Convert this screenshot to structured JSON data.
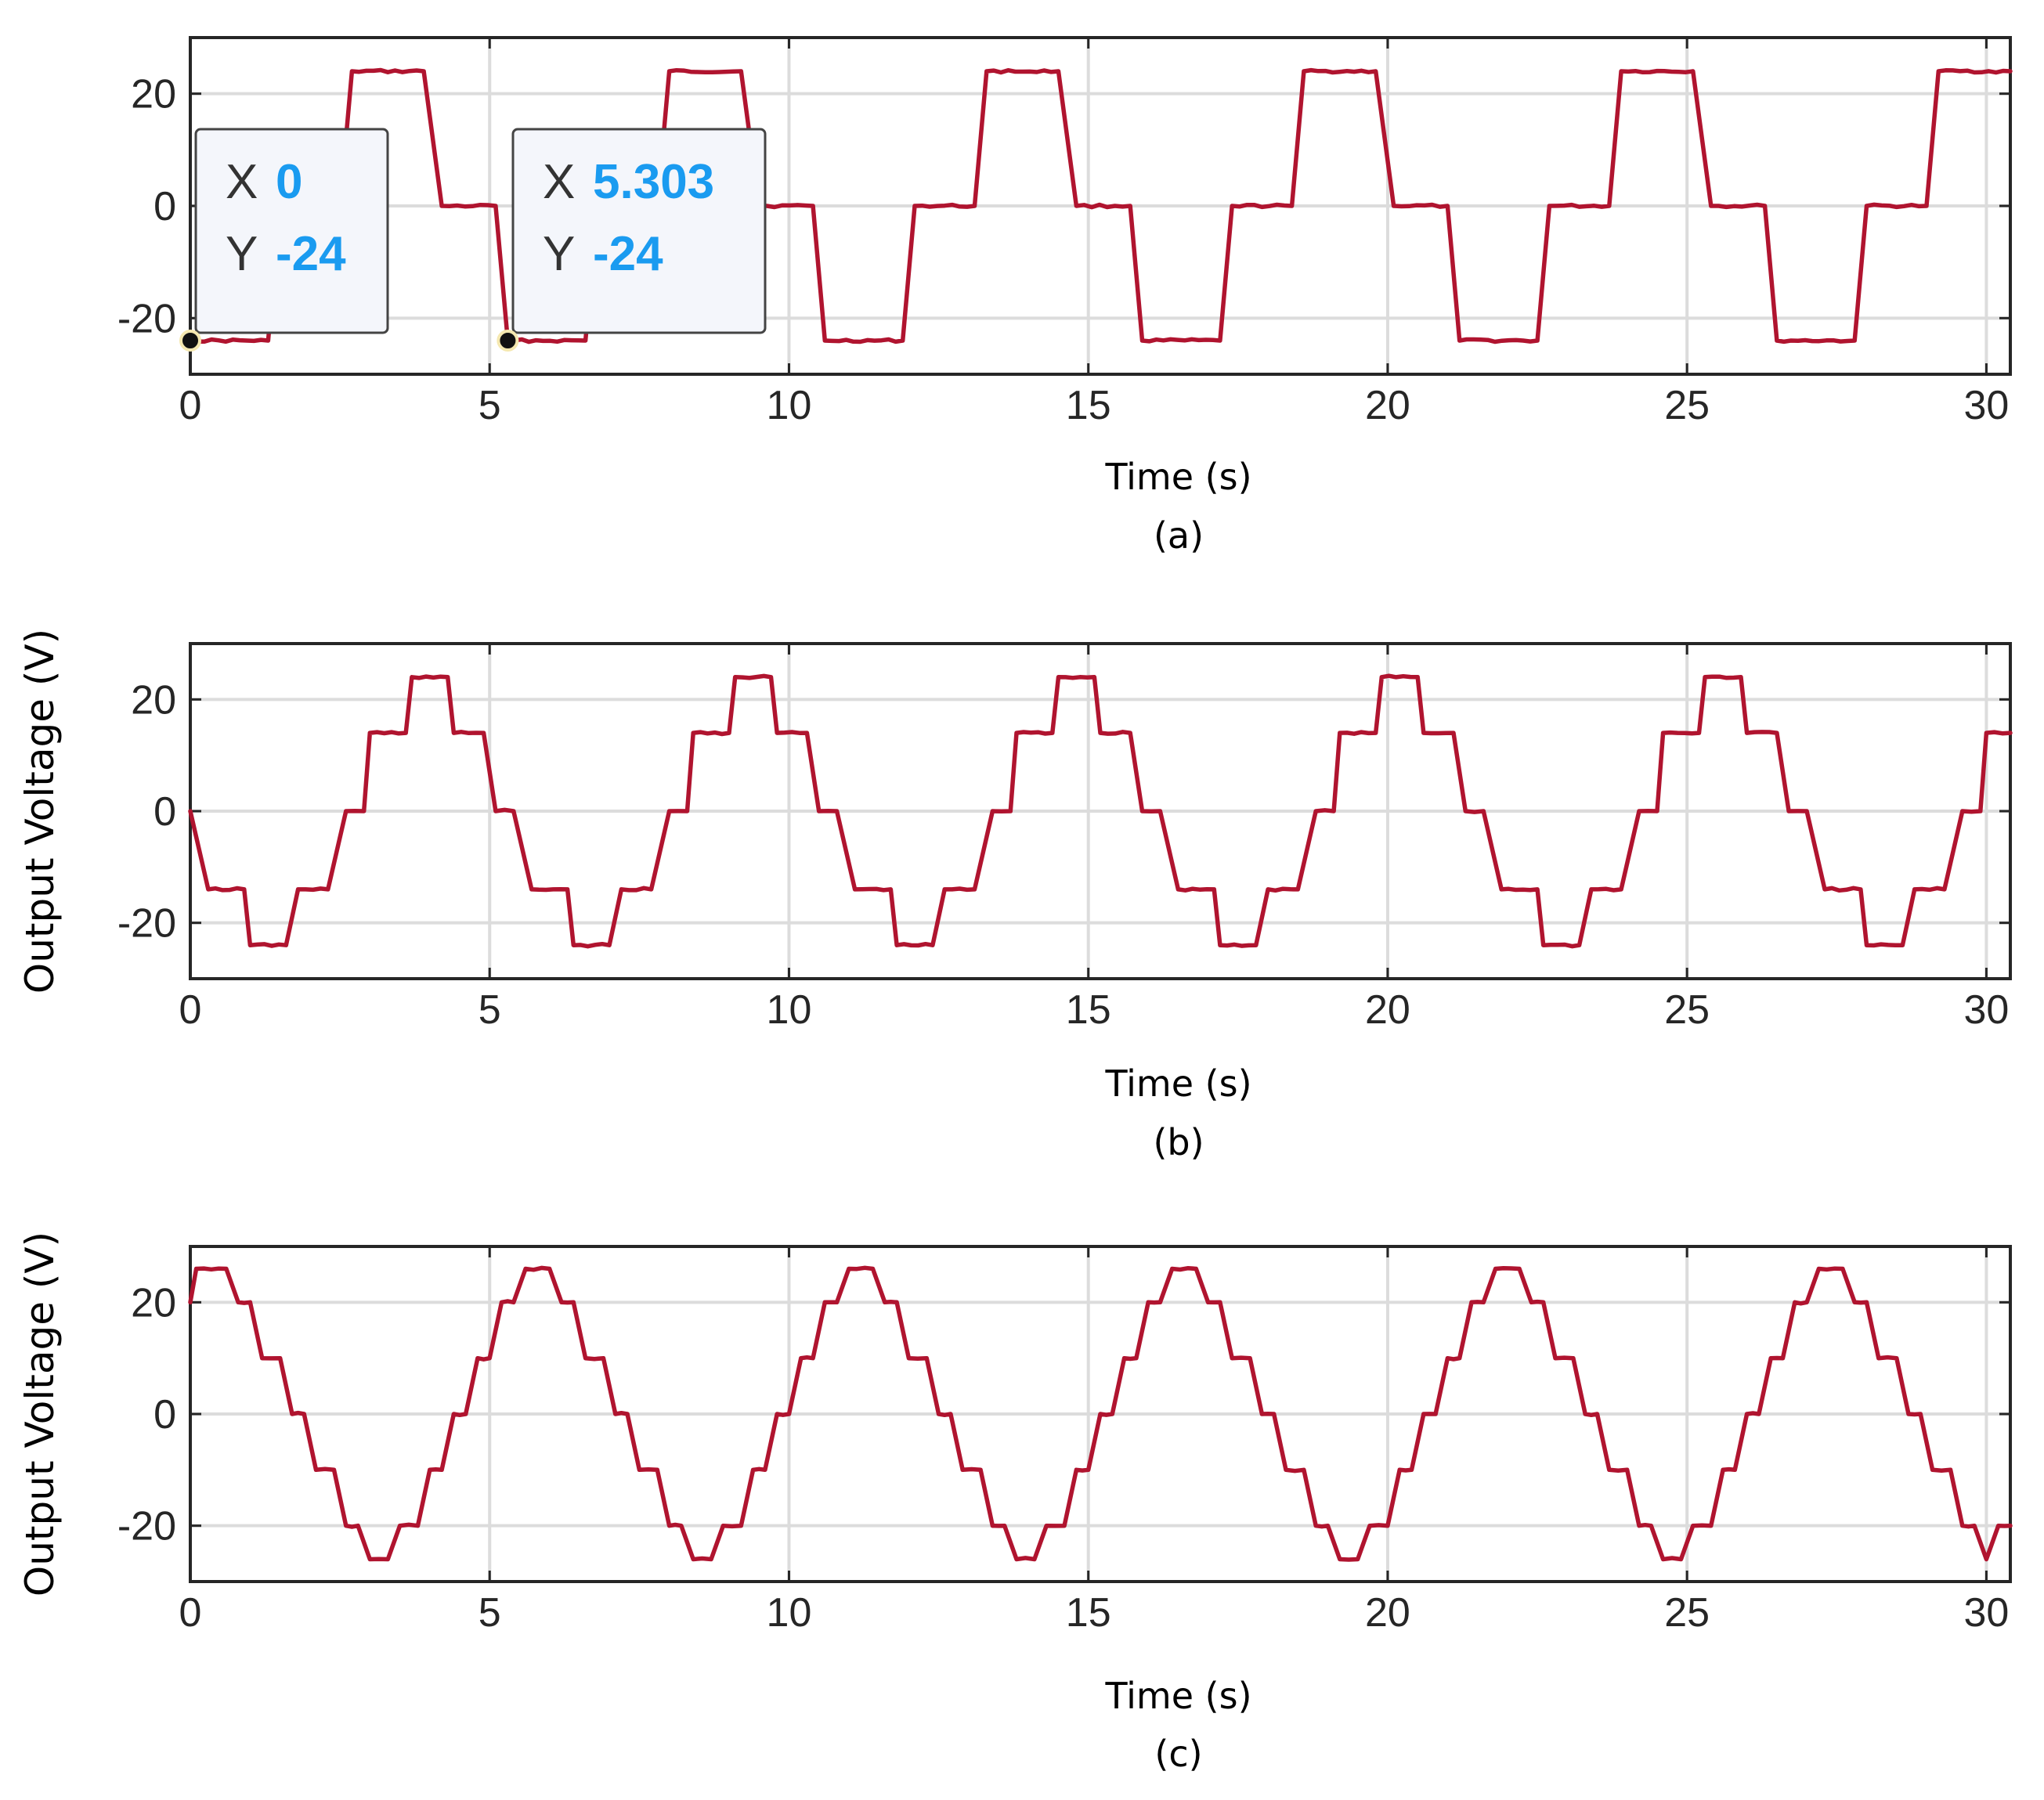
{
  "colors": {
    "trace": "#b0142f",
    "datatip_value": "#1a9bf0"
  },
  "chart_data": [
    {
      "type": "line",
      "xlabel": "Time (s)",
      "ylabel": "",
      "caption": "(a)",
      "xlim": [
        0,
        30.4
      ],
      "ylim": [
        -30,
        30
      ],
      "xticks": [
        "0",
        "5",
        "10",
        "15",
        "20",
        "25",
        "30"
      ],
      "yticks": [
        "20",
        "0",
        "-20"
      ],
      "grid": true,
      "waveform": {
        "shape": "three-level stepped",
        "levels": [
          -24,
          0,
          24
        ],
        "period": 5.303,
        "start": -24,
        "samples": [
          [
            0,
            -24
          ],
          [
            1.3,
            -24
          ],
          [
            1.5,
            0
          ],
          [
            2.5,
            0
          ],
          [
            2.7,
            24
          ],
          [
            3.9,
            24
          ],
          [
            4.2,
            0
          ],
          [
            5.1,
            0
          ],
          [
            5.303,
            -24
          ],
          [
            6.6,
            -24
          ],
          [
            6.8,
            0
          ],
          [
            7.8,
            0
          ],
          [
            8.0,
            24
          ],
          [
            9.2,
            24
          ],
          [
            9.5,
            0
          ],
          [
            10.4,
            0
          ],
          [
            10.6,
            -24
          ],
          [
            11.9,
            -24
          ],
          [
            12.1,
            0
          ],
          [
            13.1,
            0
          ],
          [
            13.3,
            24
          ],
          [
            14.5,
            24
          ],
          [
            14.8,
            0
          ],
          [
            15.7,
            0
          ],
          [
            15.9,
            -24
          ],
          [
            17.2,
            -24
          ],
          [
            17.4,
            0
          ],
          [
            18.4,
            0
          ],
          [
            18.6,
            24
          ],
          [
            19.8,
            24
          ],
          [
            20.1,
            0
          ],
          [
            21.0,
            0
          ],
          [
            21.2,
            -24
          ],
          [
            22.5,
            -24
          ],
          [
            22.7,
            0
          ],
          [
            23.7,
            0
          ],
          [
            23.9,
            24
          ],
          [
            25.1,
            24
          ],
          [
            25.4,
            0
          ],
          [
            26.3,
            0
          ],
          [
            26.5,
            -24
          ],
          [
            27.8,
            -24
          ],
          [
            28.0,
            0
          ],
          [
            29.0,
            0
          ],
          [
            29.2,
            24
          ],
          [
            30.4,
            24
          ]
        ]
      },
      "datatips": [
        {
          "x_label": "X",
          "x_value": "0",
          "y_label": "Y",
          "y_value": "-24",
          "x": 0,
          "y": -24
        },
        {
          "x_label": "X",
          "x_value": "5.303",
          "y_label": "Y",
          "y_value": "-24",
          "x": 5.303,
          "y": -24
        }
      ]
    },
    {
      "type": "line",
      "xlabel": "Time (s)",
      "ylabel": "Output Voltage (V)",
      "caption": "(b)",
      "xlim": [
        0,
        30.4
      ],
      "ylim": [
        -30,
        30
      ],
      "xticks": [
        "0",
        "5",
        "10",
        "15",
        "20",
        "25",
        "30"
      ],
      "yticks": [
        "20",
        "0",
        "-20"
      ],
      "grid": true,
      "waveform": {
        "shape": "five-level stepped",
        "levels": [
          -24,
          -14,
          0,
          14,
          24
        ],
        "period": 5.4,
        "start": 0,
        "samples": [
          [
            0,
            0
          ],
          [
            0.3,
            -14
          ],
          [
            0.9,
            -14
          ],
          [
            1.0,
            -24
          ],
          [
            1.6,
            -24
          ],
          [
            1.8,
            -14
          ],
          [
            2.3,
            -14
          ],
          [
            2.6,
            0
          ],
          [
            2.9,
            0
          ],
          [
            3.0,
            14
          ],
          [
            3.6,
            14
          ],
          [
            3.7,
            24
          ],
          [
            4.3,
            24
          ],
          [
            4.4,
            14
          ],
          [
            4.9,
            14
          ],
          [
            5.1,
            0
          ],
          [
            5.4,
            0
          ],
          [
            5.7,
            -14
          ],
          [
            6.3,
            -14
          ],
          [
            6.4,
            -24
          ],
          [
            7.0,
            -24
          ],
          [
            7.2,
            -14
          ],
          [
            7.7,
            -14
          ],
          [
            8.0,
            0
          ],
          [
            8.3,
            0
          ],
          [
            8.4,
            14
          ],
          [
            9.0,
            14
          ],
          [
            9.1,
            24
          ],
          [
            9.7,
            24
          ],
          [
            9.8,
            14
          ],
          [
            10.3,
            14
          ],
          [
            10.5,
            0
          ],
          [
            10.8,
            0
          ],
          [
            11.1,
            -14
          ],
          [
            11.7,
            -14
          ],
          [
            11.8,
            -24
          ],
          [
            12.4,
            -24
          ],
          [
            12.6,
            -14
          ],
          [
            13.1,
            -14
          ],
          [
            13.4,
            0
          ],
          [
            13.7,
            0
          ],
          [
            13.8,
            14
          ],
          [
            14.4,
            14
          ],
          [
            14.5,
            24
          ],
          [
            15.1,
            24
          ],
          [
            15.2,
            14
          ],
          [
            15.7,
            14
          ],
          [
            15.9,
            0
          ],
          [
            16.2,
            0
          ],
          [
            16.5,
            -14
          ],
          [
            17.1,
            -14
          ],
          [
            17.2,
            -24
          ],
          [
            17.8,
            -24
          ],
          [
            18.0,
            -14
          ],
          [
            18.5,
            -14
          ],
          [
            18.8,
            0
          ],
          [
            19.1,
            0
          ],
          [
            19.2,
            14
          ],
          [
            19.8,
            14
          ],
          [
            19.9,
            24
          ],
          [
            20.5,
            24
          ],
          [
            20.6,
            14
          ],
          [
            21.1,
            14
          ],
          [
            21.3,
            0
          ],
          [
            21.6,
            0
          ],
          [
            21.9,
            -14
          ],
          [
            22.5,
            -14
          ],
          [
            22.6,
            -24
          ],
          [
            23.2,
            -24
          ],
          [
            23.4,
            -14
          ],
          [
            23.9,
            -14
          ],
          [
            24.2,
            0
          ],
          [
            24.5,
            0
          ],
          [
            24.6,
            14
          ],
          [
            25.2,
            14
          ],
          [
            25.3,
            24
          ],
          [
            25.9,
            24
          ],
          [
            26.0,
            14
          ],
          [
            26.5,
            14
          ],
          [
            26.7,
            0
          ],
          [
            27.0,
            0
          ],
          [
            27.3,
            -14
          ],
          [
            27.9,
            -14
          ],
          [
            28.0,
            -24
          ],
          [
            28.6,
            -24
          ],
          [
            28.8,
            -14
          ],
          [
            29.3,
            -14
          ],
          [
            29.6,
            0
          ],
          [
            29.9,
            0
          ],
          [
            30.0,
            14
          ],
          [
            30.4,
            14
          ]
        ]
      }
    },
    {
      "type": "line",
      "xlabel": "Time (s)",
      "ylabel": "Output Voltage (V)",
      "caption": "(c)",
      "xlim": [
        0,
        30.4
      ],
      "ylim": [
        -30,
        30
      ],
      "xticks": [
        "0",
        "5",
        "10",
        "15",
        "20",
        "25",
        "30"
      ],
      "yticks": [
        "20",
        "0",
        "-20"
      ],
      "grid": true,
      "waveform": {
        "shape": "multilevel stepped",
        "levels": [
          -26,
          -20,
          -10,
          0,
          10,
          20,
          26
        ],
        "period": 5.4,
        "start": 20,
        "samples": [
          [
            0,
            20
          ],
          [
            0.1,
            26
          ],
          [
            0.6,
            26
          ],
          [
            0.8,
            20
          ],
          [
            1.0,
            20
          ],
          [
            1.2,
            10
          ],
          [
            1.5,
            10
          ],
          [
            1.7,
            0
          ],
          [
            1.9,
            0
          ],
          [
            2.1,
            -10
          ],
          [
            2.4,
            -10
          ],
          [
            2.6,
            -20
          ],
          [
            2.8,
            -20
          ],
          [
            3.0,
            -26
          ],
          [
            3.3,
            -26
          ],
          [
            3.5,
            -20
          ],
          [
            3.8,
            -20
          ],
          [
            4.0,
            -10
          ],
          [
            4.2,
            -10
          ],
          [
            4.4,
            0
          ],
          [
            4.6,
            0
          ],
          [
            4.8,
            10
          ],
          [
            5.0,
            10
          ],
          [
            5.2,
            20
          ],
          [
            5.4,
            20
          ],
          [
            5.6,
            26
          ],
          [
            6.0,
            26
          ],
          [
            6.2,
            20
          ],
          [
            6.4,
            20
          ],
          [
            6.6,
            10
          ],
          [
            6.9,
            10
          ],
          [
            7.1,
            0
          ],
          [
            7.3,
            0
          ],
          [
            7.5,
            -10
          ],
          [
            7.8,
            -10
          ],
          [
            8.0,
            -20
          ],
          [
            8.2,
            -20
          ],
          [
            8.4,
            -26
          ],
          [
            8.7,
            -26
          ],
          [
            8.9,
            -20
          ],
          [
            9.2,
            -20
          ],
          [
            9.4,
            -10
          ],
          [
            9.6,
            -10
          ],
          [
            9.8,
            0
          ],
          [
            10.0,
            0
          ],
          [
            10.2,
            10
          ],
          [
            10.4,
            10
          ],
          [
            10.6,
            20
          ],
          [
            10.8,
            20
          ],
          [
            11.0,
            26
          ],
          [
            11.4,
            26
          ],
          [
            11.6,
            20
          ],
          [
            11.8,
            20
          ],
          [
            12.0,
            10
          ],
          [
            12.3,
            10
          ],
          [
            12.5,
            0
          ],
          [
            12.7,
            0
          ],
          [
            12.9,
            -10
          ],
          [
            13.2,
            -10
          ],
          [
            13.4,
            -20
          ],
          [
            13.6,
            -20
          ],
          [
            13.8,
            -26
          ],
          [
            14.1,
            -26
          ],
          [
            14.3,
            -20
          ],
          [
            14.6,
            -20
          ],
          [
            14.8,
            -10
          ],
          [
            15.0,
            -10
          ],
          [
            15.2,
            0
          ],
          [
            15.4,
            0
          ],
          [
            15.6,
            10
          ],
          [
            15.8,
            10
          ],
          [
            16.0,
            20
          ],
          [
            16.2,
            20
          ],
          [
            16.4,
            26
          ],
          [
            16.8,
            26
          ],
          [
            17.0,
            20
          ],
          [
            17.2,
            20
          ],
          [
            17.4,
            10
          ],
          [
            17.7,
            10
          ],
          [
            17.9,
            0
          ],
          [
            18.1,
            0
          ],
          [
            18.3,
            -10
          ],
          [
            18.6,
            -10
          ],
          [
            18.8,
            -20
          ],
          [
            19.0,
            -20
          ],
          [
            19.2,
            -26
          ],
          [
            19.5,
            -26
          ],
          [
            19.7,
            -20
          ],
          [
            20.0,
            -20
          ],
          [
            20.2,
            -10
          ],
          [
            20.4,
            -10
          ],
          [
            20.6,
            0
          ],
          [
            20.8,
            0
          ],
          [
            21.0,
            10
          ],
          [
            21.2,
            10
          ],
          [
            21.4,
            20
          ],
          [
            21.6,
            20
          ],
          [
            21.8,
            26
          ],
          [
            22.2,
            26
          ],
          [
            22.4,
            20
          ],
          [
            22.6,
            20
          ],
          [
            22.8,
            10
          ],
          [
            23.1,
            10
          ],
          [
            23.3,
            0
          ],
          [
            23.5,
            0
          ],
          [
            23.7,
            -10
          ],
          [
            24.0,
            -10
          ],
          [
            24.2,
            -20
          ],
          [
            24.4,
            -20
          ],
          [
            24.6,
            -26
          ],
          [
            24.9,
            -26
          ],
          [
            25.1,
            -20
          ],
          [
            25.4,
            -20
          ],
          [
            25.6,
            -10
          ],
          [
            25.8,
            -10
          ],
          [
            26.0,
            0
          ],
          [
            26.2,
            0
          ],
          [
            26.4,
            10
          ],
          [
            26.6,
            10
          ],
          [
            26.8,
            20
          ],
          [
            27.0,
            20
          ],
          [
            27.2,
            26
          ],
          [
            27.6,
            26
          ],
          [
            27.8,
            20
          ],
          [
            28.0,
            20
          ],
          [
            28.2,
            10
          ],
          [
            28.5,
            10
          ],
          [
            28.7,
            0
          ],
          [
            28.9,
            0
          ],
          [
            29.1,
            -10
          ],
          [
            29.4,
            -10
          ],
          [
            29.6,
            -20
          ],
          [
            29.8,
            -20
          ],
          [
            30.0,
            -26
          ],
          [
            30.2,
            -20
          ],
          [
            30.4,
            -20
          ]
        ]
      }
    }
  ]
}
